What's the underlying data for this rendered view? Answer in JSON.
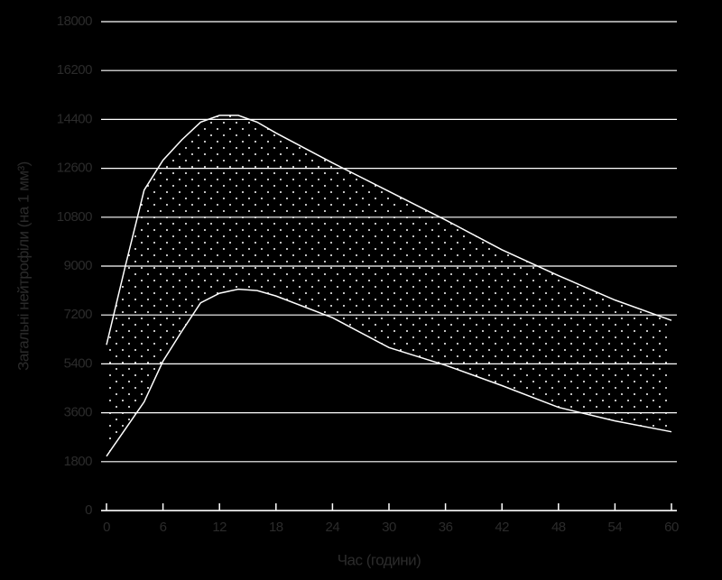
{
  "chart_data": {
    "type": "band",
    "xlabel": "Час (години)",
    "ylabel": "Загальні нейтрофіли (на 1 мм³)",
    "x": [
      0,
      2,
      4,
      6,
      8,
      10,
      12,
      14,
      16,
      18,
      24,
      30,
      36,
      42,
      48,
      54,
      60
    ],
    "series": [
      {
        "color": "#ffffff",
        "values": [
          6100,
          9000,
          11800,
          12900,
          13650,
          14300,
          14550,
          14550,
          14300,
          13900,
          12800,
          11750,
          10700,
          9600,
          8650,
          7750,
          7000
        ]
      },
      {
        "color": "#ffffff",
        "values": [
          2000,
          3000,
          4000,
          5500,
          6600,
          7650,
          8000,
          8150,
          8100,
          7900,
          7100,
          6000,
          5350,
          4600,
          3800,
          3300,
          2900
        ]
      }
    ],
    "xlim": [
      0,
      60
    ],
    "xticks": [
      0,
      6,
      12,
      18,
      24,
      30,
      36,
      42,
      48,
      54,
      60
    ],
    "ylim": [
      0,
      18000
    ],
    "yticks": [
      0,
      1800,
      3600,
      5400,
      7200,
      9000,
      10800,
      12600,
      14400,
      16200,
      18000
    ],
    "grid": true
  }
}
